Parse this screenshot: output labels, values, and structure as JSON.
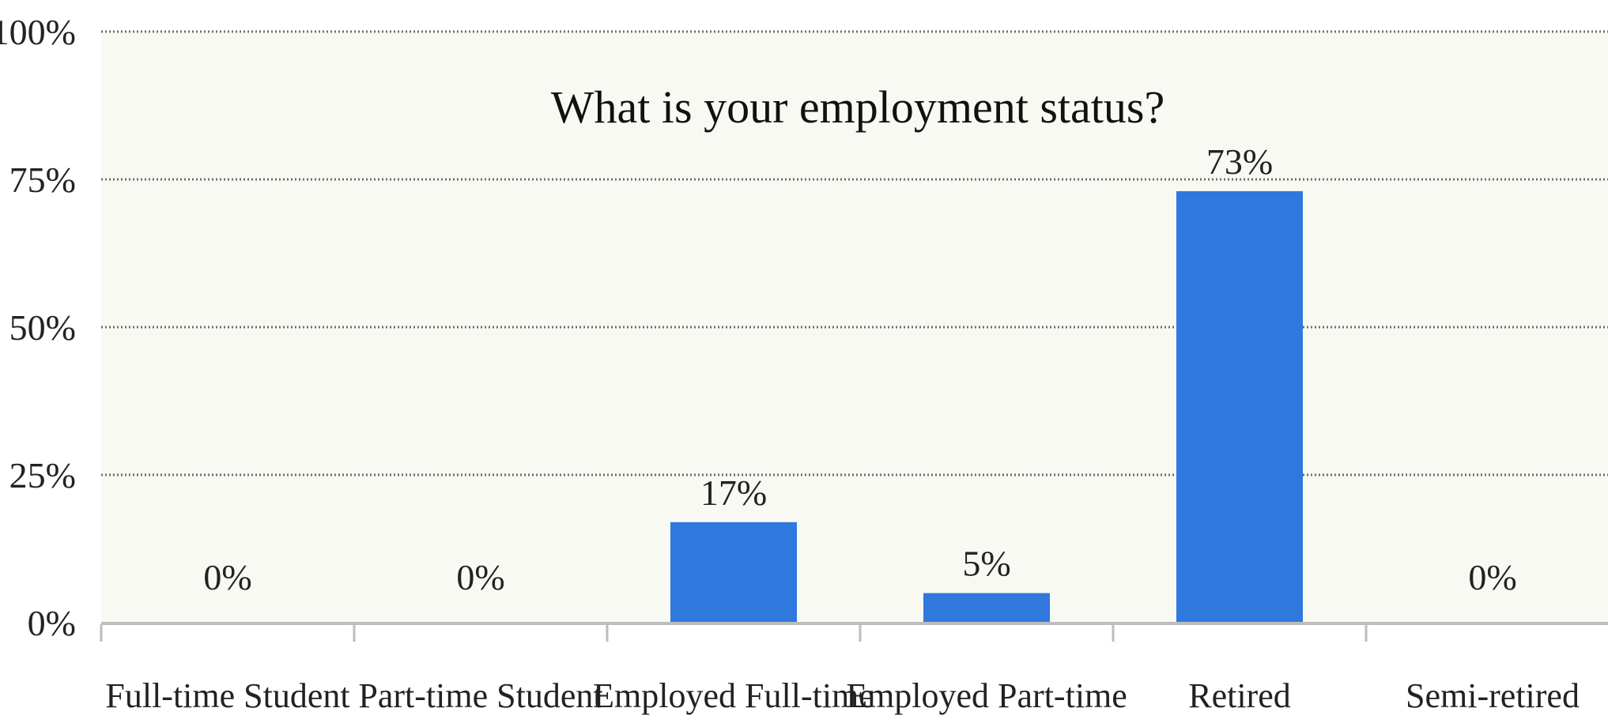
{
  "chart_data": {
    "type": "bar",
    "title": "What is your employment status?",
    "categories": [
      "Full-time Student",
      "Part-time Student",
      "Employed Full-time",
      "Employed Part-time",
      "Retired",
      "Semi-retired"
    ],
    "values": [
      0,
      0,
      17,
      5,
      73,
      0
    ],
    "value_labels": [
      "0%",
      "0%",
      "17%",
      "5%",
      "73%",
      "0%"
    ],
    "y_ticks": [
      "0%",
      "25%",
      "50%",
      "75%",
      "100%"
    ],
    "y_tick_values": [
      0,
      25,
      50,
      75,
      100
    ],
    "ylim": [
      0,
      100
    ],
    "xlabel": "",
    "ylabel": "",
    "grid": true,
    "bar_color": "#2f78de",
    "plot_background": "#f9f9f4"
  }
}
